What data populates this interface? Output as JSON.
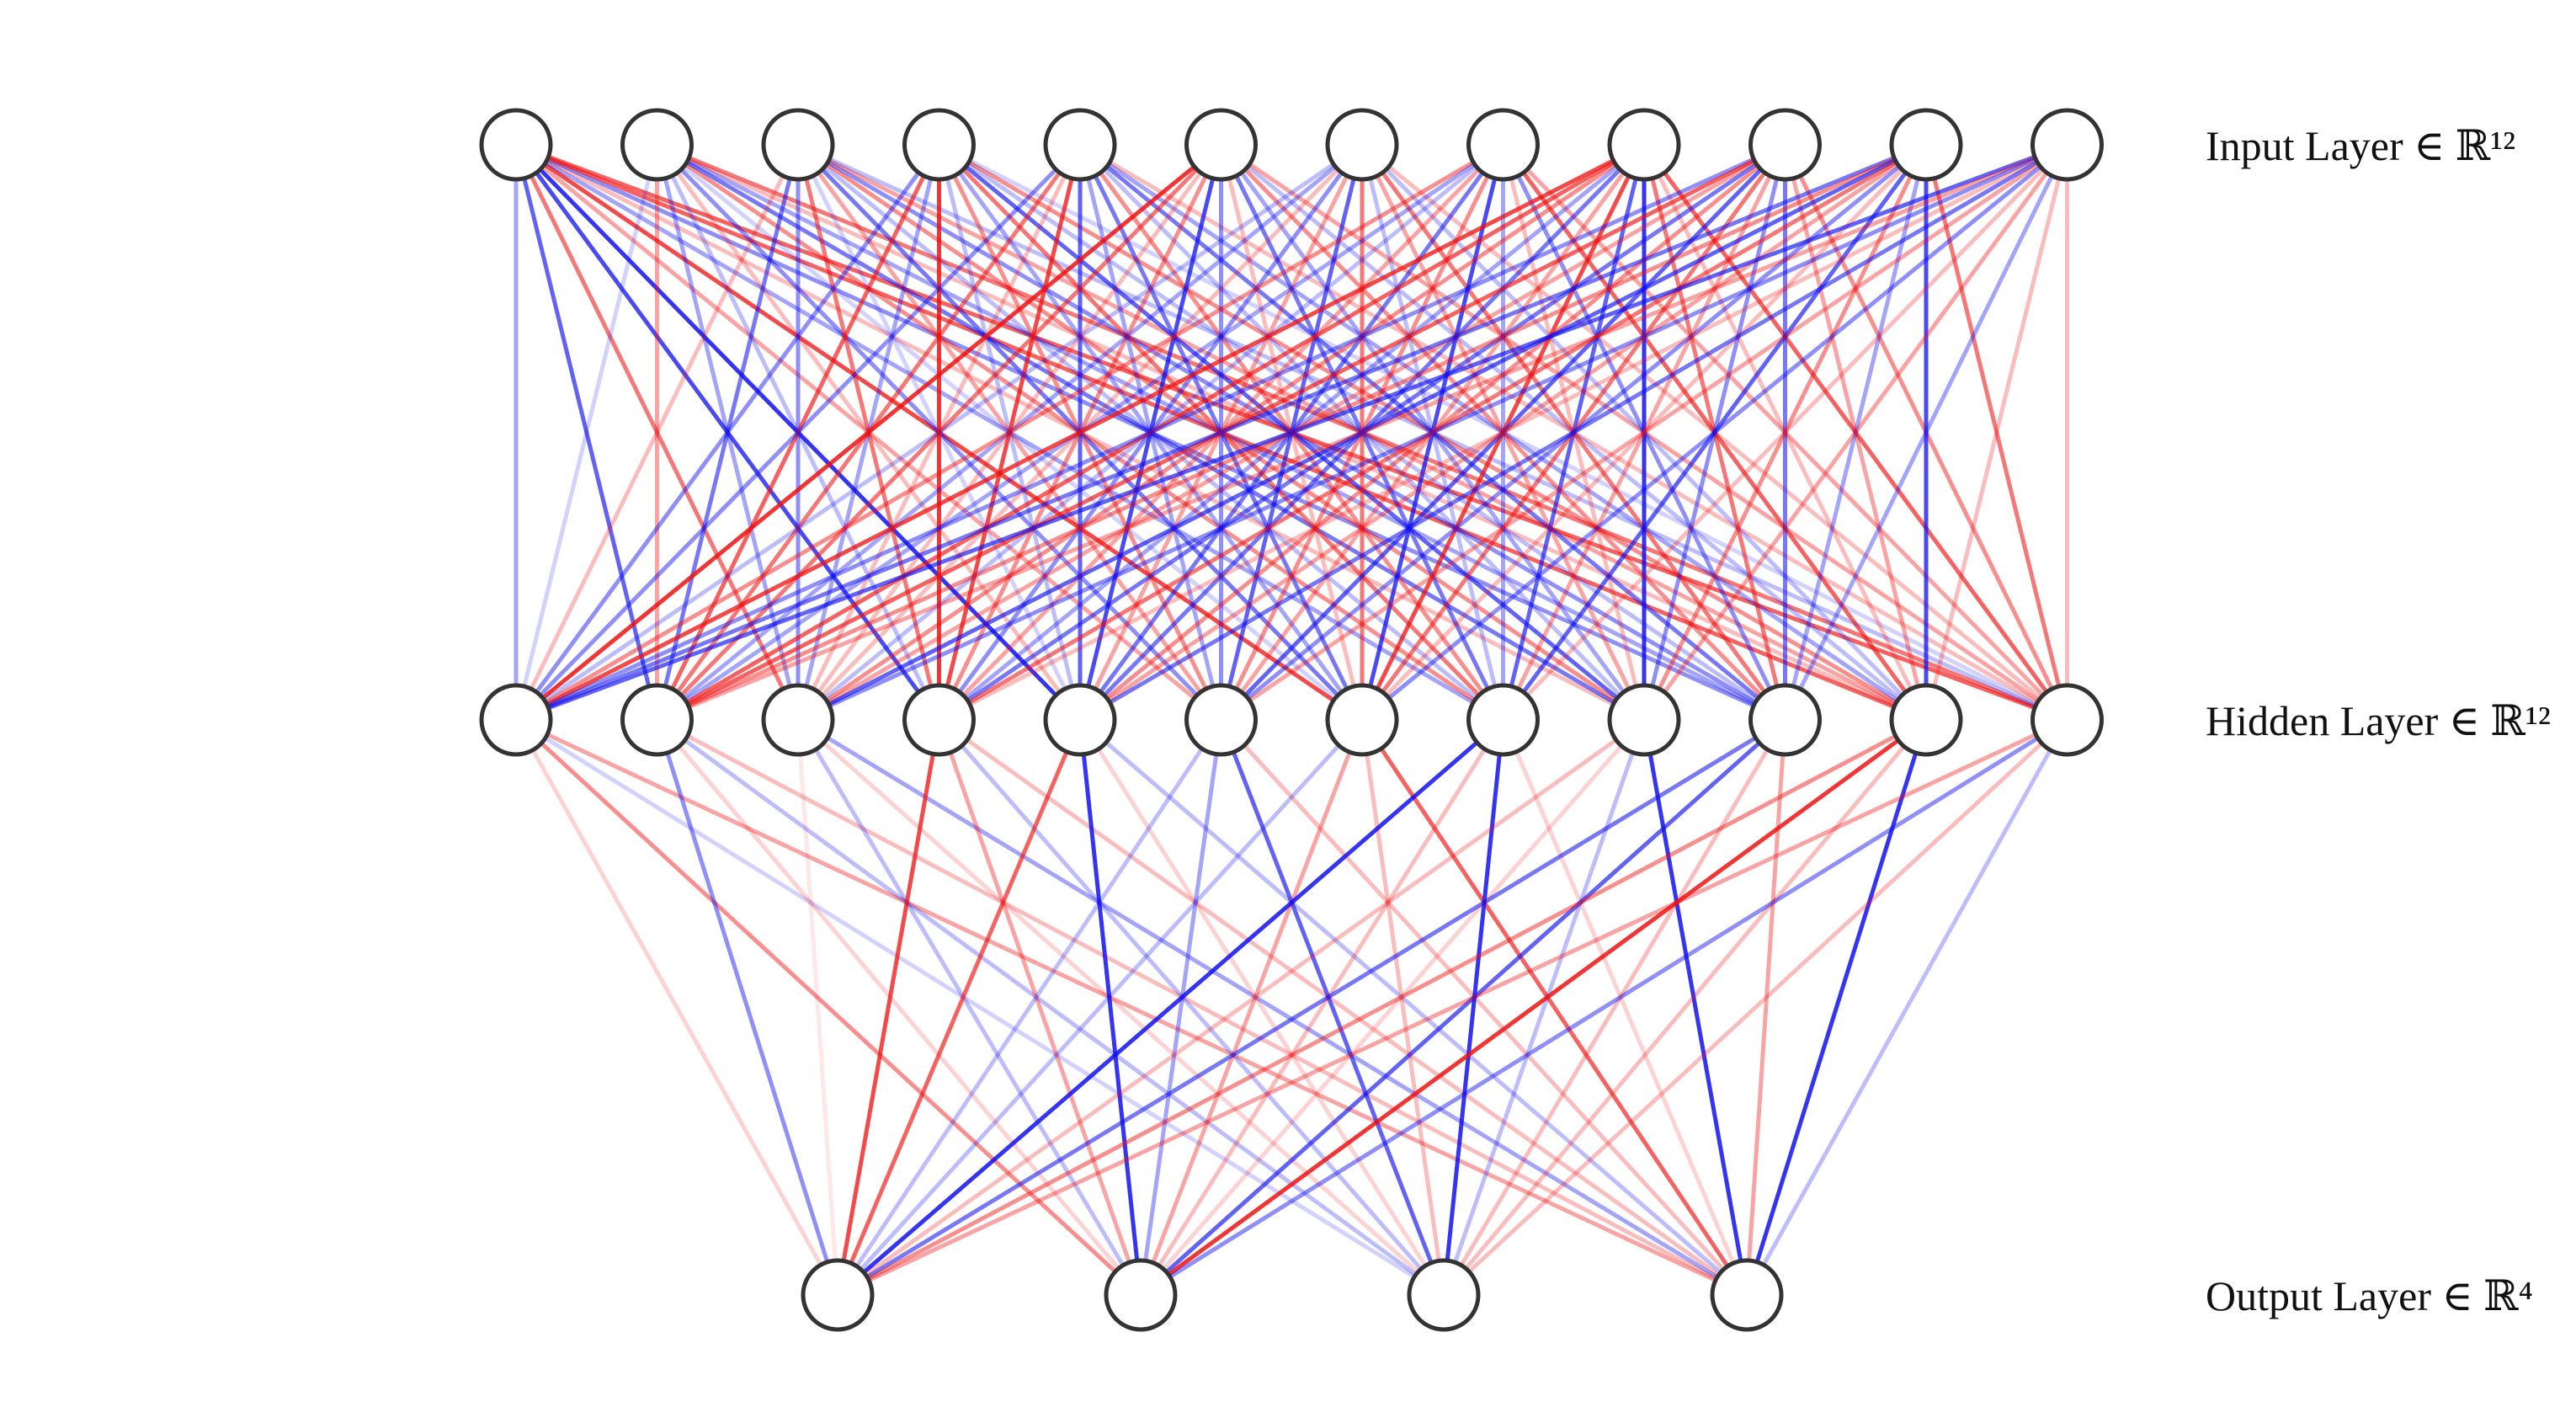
{
  "diagram": {
    "type": "neural-network",
    "colors": {
      "positive": "#ee1111",
      "negative": "#1111ee",
      "node_fill": "#ffffff",
      "node_stroke": "#333333"
    },
    "layers": [
      {
        "label": "Input Layer ∈ ℝ¹²",
        "size": 12
      },
      {
        "label": "Hidden Layer ∈ ℝ¹²",
        "size": 12
      },
      {
        "label": "Output Layer ∈ ℝ⁴",
        "size": 4
      }
    ],
    "weights": [
      [
        [
          -0.4,
          -0.7,
          0.6,
          -0.8,
          -0.9,
          0.4,
          0.8,
          -0.4,
          0.3,
          -0.5,
          0.7,
          0.7
        ],
        [
          -0.2,
          0.4,
          -0.4,
          -0.3,
          0.3,
          -0.5,
          -0.2,
          0.5,
          -0.6,
          -0.4,
          0.3,
          0.6
        ],
        [
          0.3,
          -0.6,
          -0.5,
          0.6,
          -0.2,
          0.4,
          -0.6,
          -0.3,
          0.5,
          -0.5,
          0.4,
          -0.3
        ],
        [
          -0.5,
          0.7,
          -0.4,
          0.9,
          -0.3,
          0.5,
          -0.4,
          0.6,
          -0.7,
          -0.3,
          0.5,
          -0.2
        ],
        [
          -0.5,
          0.6,
          0.3,
          0.8,
          -0.7,
          -0.4,
          -0.6,
          0.5,
          -0.3,
          -0.6,
          -0.4,
          0.3
        ],
        [
          0.9,
          0.6,
          0.3,
          0.5,
          -0.8,
          -0.5,
          0.3,
          -0.6,
          -0.4,
          0.5,
          -0.3,
          0.4
        ],
        [
          -0.3,
          -0.4,
          0.3,
          -0.5,
          0.4,
          -0.7,
          0.6,
          -0.3,
          0.4,
          0.6,
          -0.3,
          0.3
        ],
        [
          0.5,
          -0.4,
          -0.3,
          0.4,
          -0.6,
          0.5,
          -0.8,
          -0.4,
          0.3,
          -0.5,
          0.7,
          0.4
        ],
        [
          0.8,
          0.7,
          0.5,
          -0.4,
          -0.6,
          0.4,
          0.8,
          -0.7,
          -0.9,
          0.6,
          0.3,
          0.7
        ],
        [
          -0.5,
          0.7,
          0.4,
          -0.6,
          0.5,
          -0.7,
          0.6,
          0.4,
          -0.5,
          -0.6,
          0.4,
          0.5
        ],
        [
          -0.6,
          0.5,
          -0.7,
          0.6,
          0.4,
          -0.5,
          0.3,
          -0.7,
          0.5,
          -0.4,
          -0.8,
          0.6
        ],
        [
          -0.7,
          0.4,
          -0.5,
          0.3,
          -0.6,
          0.4,
          -0.5,
          0.3,
          0.4,
          -0.4,
          0.3,
          0.3
        ]
      ],
      [
        [
          0.2,
          0.5,
          -0.2,
          0.4
        ],
        [
          -0.5,
          0.2,
          -0.3,
          0.3
        ],
        [
          0.1,
          -0.3,
          0.2,
          -0.4
        ],
        [
          0.8,
          0.4,
          -0.3,
          0.3
        ],
        [
          0.7,
          -0.9,
          0.2,
          -0.3
        ],
        [
          -0.3,
          -0.4,
          -0.7,
          0.3
        ],
        [
          -0.3,
          0.4,
          0.3,
          0.7
        ],
        [
          -0.9,
          0.3,
          -0.9,
          0.2
        ],
        [
          0.3,
          0.2,
          -0.3,
          -0.9
        ],
        [
          -0.6,
          -0.7,
          0.3,
          0.4
        ],
        [
          0.5,
          0.9,
          0.3,
          -0.9
        ],
        [
          0.4,
          -0.5,
          0.3,
          -0.3
        ]
      ]
    ]
  }
}
